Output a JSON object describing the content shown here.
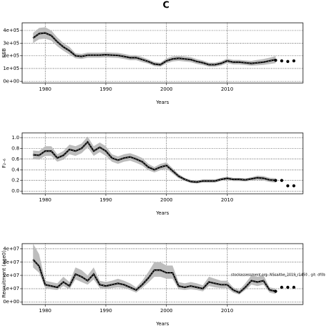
{
  "title": "C",
  "chart_data": [
    {
      "type": "band_line",
      "ylabel": "SSB",
      "xlabel": "Years",
      "x": [
        1978,
        1979,
        1980,
        1981,
        1982,
        1983,
        1984,
        1985,
        1986,
        1987,
        1988,
        1989,
        1990,
        1991,
        1992,
        1993,
        1994,
        1995,
        1996,
        1997,
        1998,
        1999,
        2000,
        2001,
        2002,
        2003,
        2004,
        2005,
        2006,
        2007,
        2008,
        2009,
        2010,
        2011,
        2012,
        2013,
        2014,
        2015,
        2016,
        2017,
        2018
      ],
      "values": [
        340000,
        375000,
        380000,
        360000,
        310000,
        270000,
        240000,
        200000,
        195000,
        205000,
        205000,
        205000,
        208000,
        205000,
        203000,
        195000,
        185000,
        185000,
        170000,
        155000,
        135000,
        130000,
        160000,
        175000,
        180000,
        175000,
        170000,
        155000,
        145000,
        130000,
        130000,
        140000,
        160000,
        150000,
        150000,
        145000,
        140000,
        145000,
        150000,
        160000,
        170000
      ],
      "lower": [
        300000,
        330000,
        335000,
        320000,
        275000,
        240000,
        210000,
        180000,
        175000,
        185000,
        185000,
        185000,
        188000,
        185000,
        183000,
        175000,
        165000,
        165000,
        150000,
        138000,
        118000,
        114000,
        140000,
        155000,
        160000,
        155000,
        150000,
        136000,
        127000,
        114000,
        114000,
        123000,
        142000,
        132000,
        132000,
        127000,
        122000,
        125000,
        128000,
        135000,
        142000
      ],
      "upper": [
        380000,
        420000,
        425000,
        400000,
        345000,
        300000,
        270000,
        220000,
        215000,
        225000,
        225000,
        225000,
        228000,
        225000,
        223000,
        215000,
        205000,
        205000,
        190000,
        172000,
        152000,
        146000,
        180000,
        195000,
        200000,
        195000,
        190000,
        174000,
        163000,
        146000,
        146000,
        157000,
        178000,
        168000,
        168000,
        163000,
        160000,
        168000,
        175000,
        185000,
        198000
      ],
      "forecast_x": [
        2018,
        2019,
        2020,
        2021
      ],
      "forecast_values": [
        165000,
        160000,
        155000,
        160000
      ],
      "color": "#000000",
      "band_color": "#bdbdbd",
      "xlim": [
        1976.2,
        2022.5
      ],
      "xticks": [
        1980,
        1990,
        2000,
        2010
      ],
      "ylim": [
        -15000,
        460000
      ],
      "yticks": [
        {
          "value": 0,
          "label": "0e+00"
        },
        {
          "value": 100000,
          "label": "1e+05"
        },
        {
          "value": 200000,
          "label": "2e+05"
        },
        {
          "value": 300000,
          "label": "3e+05"
        },
        {
          "value": 400000,
          "label": "4e+05"
        }
      ],
      "grid": true
    },
    {
      "type": "band_line",
      "ylabel": "F₂₋₆",
      "xlabel": "Years",
      "x": [
        1978,
        1979,
        1980,
        1981,
        1982,
        1983,
        1984,
        1985,
        1986,
        1987,
        1988,
        1989,
        1990,
        1991,
        1992,
        1993,
        1994,
        1995,
        1996,
        1997,
        1998,
        1999,
        2000,
        2001,
        2002,
        2003,
        2004,
        2005,
        2006,
        2007,
        2008,
        2009,
        2010,
        2011,
        2012,
        2013,
        2014,
        2015,
        2016,
        2017,
        2018
      ],
      "values": [
        0.68,
        0.67,
        0.75,
        0.75,
        0.62,
        0.67,
        0.78,
        0.75,
        0.8,
        0.92,
        0.75,
        0.82,
        0.75,
        0.62,
        0.58,
        0.62,
        0.64,
        0.6,
        0.55,
        0.45,
        0.4,
        0.45,
        0.48,
        0.38,
        0.28,
        0.22,
        0.18,
        0.17,
        0.19,
        0.19,
        0.19,
        0.22,
        0.24,
        0.22,
        0.22,
        0.21,
        0.23,
        0.25,
        0.24,
        0.21,
        0.2
      ],
      "lower": [
        0.6,
        0.59,
        0.66,
        0.66,
        0.55,
        0.59,
        0.69,
        0.66,
        0.71,
        0.82,
        0.66,
        0.73,
        0.66,
        0.55,
        0.51,
        0.55,
        0.57,
        0.53,
        0.48,
        0.39,
        0.35,
        0.39,
        0.42,
        0.33,
        0.24,
        0.19,
        0.15,
        0.14,
        0.16,
        0.16,
        0.16,
        0.19,
        0.21,
        0.19,
        0.19,
        0.18,
        0.2,
        0.21,
        0.2,
        0.17,
        0.16
      ],
      "upper": [
        0.76,
        0.75,
        0.84,
        0.84,
        0.69,
        0.75,
        0.87,
        0.84,
        0.89,
        1.02,
        0.84,
        0.91,
        0.84,
        0.69,
        0.65,
        0.69,
        0.71,
        0.67,
        0.62,
        0.51,
        0.45,
        0.51,
        0.54,
        0.43,
        0.32,
        0.25,
        0.21,
        0.2,
        0.22,
        0.22,
        0.22,
        0.25,
        0.27,
        0.25,
        0.25,
        0.24,
        0.26,
        0.29,
        0.28,
        0.25,
        0.24
      ],
      "forecast_x": [
        2018,
        2019,
        2020,
        2021
      ],
      "forecast_values": [
        0.2,
        0.2,
        0.1,
        0.1
      ],
      "color": "#000000",
      "band_color": "#bdbdbd",
      "xlim": [
        1976.2,
        2022.5
      ],
      "xticks": [
        1980,
        1990,
        2000,
        2010
      ],
      "ylim": [
        -0.05,
        1.09
      ],
      "yticks": [
        {
          "value": 0,
          "label": "0.0"
        },
        {
          "value": 0.2,
          "label": "0.2"
        },
        {
          "value": 0.4,
          "label": "0.4"
        },
        {
          "value": 0.6,
          "label": "0.6"
        },
        {
          "value": 0.8,
          "label": "0.8"
        },
        {
          "value": 1,
          "label": "1.0"
        }
      ],
      "grid": true
    },
    {
      "type": "band_line",
      "ylabel": "Recruitment (age0)",
      "xlabel": "Years",
      "annotation": "stockassessment.org: NSsaithe_2019_r1450 , git: df0b",
      "x": [
        1978,
        1979,
        1980,
        1981,
        1982,
        1983,
        1984,
        1985,
        1986,
        1987,
        1988,
        1989,
        1990,
        1991,
        1992,
        1993,
        1994,
        1995,
        1996,
        1997,
        1998,
        1999,
        2000,
        2001,
        2002,
        2003,
        2004,
        2005,
        2006,
        2007,
        2008,
        2009,
        2010,
        2011,
        2012,
        2013,
        2014,
        2015,
        2016,
        2017,
        2018
      ],
      "values": [
        32000000.0,
        27000000.0,
        13000000.0,
        12000000.0,
        11000000.0,
        15000000.0,
        12000000.0,
        21000000.0,
        19000000.0,
        16000000.0,
        21000000.0,
        13000000.0,
        12000000.0,
        13000000.0,
        14000000.0,
        13000000.0,
        11000000.0,
        9000000.0,
        13000000.0,
        18000000.0,
        24000000.0,
        24000000.0,
        22000000.0,
        22000000.0,
        12000000.0,
        11000000.0,
        12000000.0,
        11000000.0,
        10000000.0,
        15000000.0,
        14000000.0,
        13000000.0,
        13000000.0,
        9000000.0,
        7000000.0,
        11000000.0,
        16000000.0,
        15000000.0,
        16000000.0,
        9000000.0,
        8000000.0
      ],
      "lower": [
        26000000.0,
        22000000.0,
        10500000.0,
        9500000.0,
        9000000.0,
        12000000.0,
        9500000.0,
        17000000.0,
        15000000.0,
        13000000.0,
        17000000.0,
        10500000.0,
        9500000.0,
        10500000.0,
        11000000.0,
        10500000.0,
        9000000.0,
        7000000.0,
        10500000.0,
        14500000.0,
        19000000.0,
        19000000.0,
        17500000.0,
        17500000.0,
        9500000.0,
        9000000.0,
        9500000.0,
        9000000.0,
        8000000.0,
        12000000.0,
        11000000.0,
        10500000.0,
        10500000.0,
        7000000.0,
        5500000.0,
        9000000.0,
        13000000.0,
        12000000.0,
        13000000.0,
        7000000.0,
        6000000.0
      ],
      "upper": [
        44000000.0,
        36000000.0,
        16000000.0,
        15000000.0,
        14000000.0,
        19000000.0,
        15000000.0,
        26000000.0,
        24000000.0,
        20000000.0,
        26000000.0,
        16000000.0,
        15000000.0,
        16000000.0,
        17500000.0,
        16000000.0,
        14000000.0,
        11000000.0,
        16000000.0,
        22500000.0,
        30000000.0,
        30000000.0,
        27500000.0,
        27500000.0,
        15000000.0,
        14000000.0,
        15000000.0,
        14000000.0,
        12500000.0,
        19000000.0,
        17500000.0,
        16000000.0,
        16000000.0,
        11000000.0,
        9000000.0,
        14000000.0,
        20000000.0,
        19000000.0,
        20000000.0,
        11000000.0,
        10000000.0
      ],
      "forecast_x": [
        2018,
        2019,
        2020,
        2021
      ],
      "forecast_values": [
        8000000.0,
        11000000.0,
        11000000.0,
        11000000.0
      ],
      "color": "#000000",
      "band_color": "#bdbdbd",
      "xlim": [
        1976.2,
        2022.5
      ],
      "xticks": [
        1980,
        1990,
        2000,
        2010
      ],
      "ylim": [
        -2000000,
        44000000
      ],
      "yticks": [
        {
          "value": 0,
          "label": "0e+00"
        },
        {
          "value": 10000000,
          "label": "1e+07"
        },
        {
          "value": 20000000,
          "label": "2e+07"
        },
        {
          "value": 30000000,
          "label": "3e+07"
        },
        {
          "value": 40000000,
          "label": "4e+07"
        }
      ],
      "grid": true
    }
  ]
}
